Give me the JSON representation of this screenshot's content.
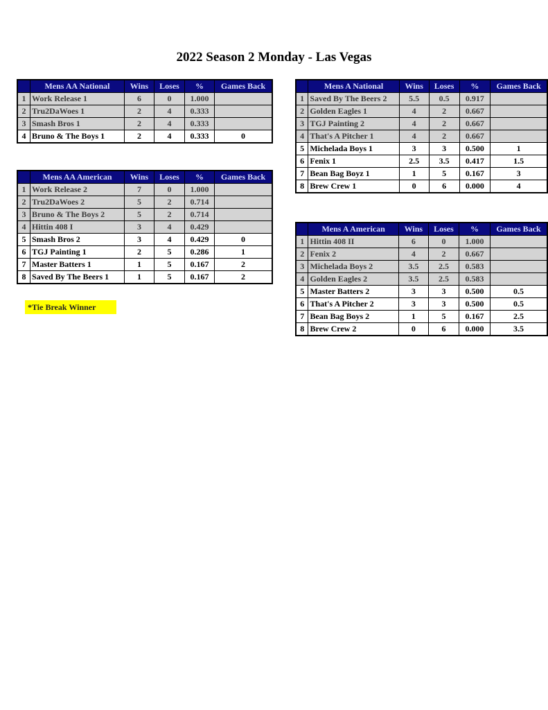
{
  "title": "2022 Season 2 Monday - Las Vegas",
  "tie_note": "*Tie Break Winner",
  "colors": {
    "header_bg": "#0a0a80",
    "top_row_bg": "#d4d4d4"
  },
  "columns": [
    "Wins",
    "Loses",
    "%",
    "Games Back"
  ],
  "tables": [
    {
      "name": "Mens AA National",
      "top_count": 3,
      "rows": [
        [
          "1",
          "Work Release 1",
          "6",
          "0",
          "1.000",
          ""
        ],
        [
          "2",
          "Tru2DaWoes 1",
          "2",
          "4",
          "0.333",
          ""
        ],
        [
          "3",
          "Smash Bros 1",
          "2",
          "4",
          "0.333",
          ""
        ],
        [
          "4",
          "Bruno & The Boys 1",
          "2",
          "4",
          "0.333",
          "0"
        ]
      ]
    },
    {
      "name": "Mens AA American",
      "top_count": 4,
      "rows": [
        [
          "1",
          "Work Release 2",
          "7",
          "0",
          "1.000",
          ""
        ],
        [
          "2",
          "Tru2DaWoes 2",
          "5",
          "2",
          "0.714",
          ""
        ],
        [
          "3",
          "Bruno & The Boys 2",
          "5",
          "2",
          "0.714",
          ""
        ],
        [
          "4",
          "Hittin 408 I",
          "3",
          "4",
          "0.429",
          ""
        ],
        [
          "5",
          "Smash Bros 2",
          "3",
          "4",
          "0.429",
          "0"
        ],
        [
          "6",
          "TGJ Painting 1",
          "2",
          "5",
          "0.286",
          "1"
        ],
        [
          "7",
          "Master Batters 1",
          "1",
          "5",
          "0.167",
          "2"
        ],
        [
          "8",
          "Saved By The Beers 1",
          "1",
          "5",
          "0.167",
          "2"
        ]
      ]
    },
    {
      "name": "Mens A National",
      "top_count": 4,
      "rows": [
        [
          "1",
          "Saved By The Beers 2",
          "5.5",
          "0.5",
          "0.917",
          ""
        ],
        [
          "2",
          "Golden Eagles 1",
          "4",
          "2",
          "0.667",
          ""
        ],
        [
          "3",
          "TGJ Painting 2",
          "4",
          "2",
          "0.667",
          ""
        ],
        [
          "4",
          "That's A Pitcher 1",
          "4",
          "2",
          "0.667",
          ""
        ],
        [
          "5",
          "Michelada Boys 1",
          "3",
          "3",
          "0.500",
          "1"
        ],
        [
          "6",
          "Fenix 1",
          "2.5",
          "3.5",
          "0.417",
          "1.5"
        ],
        [
          "7",
          "Bean Bag Boyz 1",
          "1",
          "5",
          "0.167",
          "3"
        ],
        [
          "8",
          "Brew Crew 1",
          "0",
          "6",
          "0.000",
          "4"
        ]
      ]
    },
    {
      "name": "Mens A American",
      "top_count": 4,
      "rows": [
        [
          "1",
          "Hittin 408 II",
          "6",
          "0",
          "1.000",
          ""
        ],
        [
          "2",
          "Fenix 2",
          "4",
          "2",
          "0.667",
          ""
        ],
        [
          "3",
          "Michelada Boys 2",
          "3.5",
          "2.5",
          "0.583",
          ""
        ],
        [
          "4",
          "Golden Eagles 2",
          "3.5",
          "2.5",
          "0.583",
          ""
        ],
        [
          "5",
          "Master Batters 2",
          "3",
          "3",
          "0.500",
          "0.5"
        ],
        [
          "6",
          "That's A Pitcher 2",
          "3",
          "3",
          "0.500",
          "0.5"
        ],
        [
          "7",
          "Bean Bag Boys 2",
          "1",
          "5",
          "0.167",
          "2.5"
        ],
        [
          "8",
          "Brew Crew 2",
          "0",
          "6",
          "0.000",
          "3.5"
        ]
      ]
    }
  ]
}
